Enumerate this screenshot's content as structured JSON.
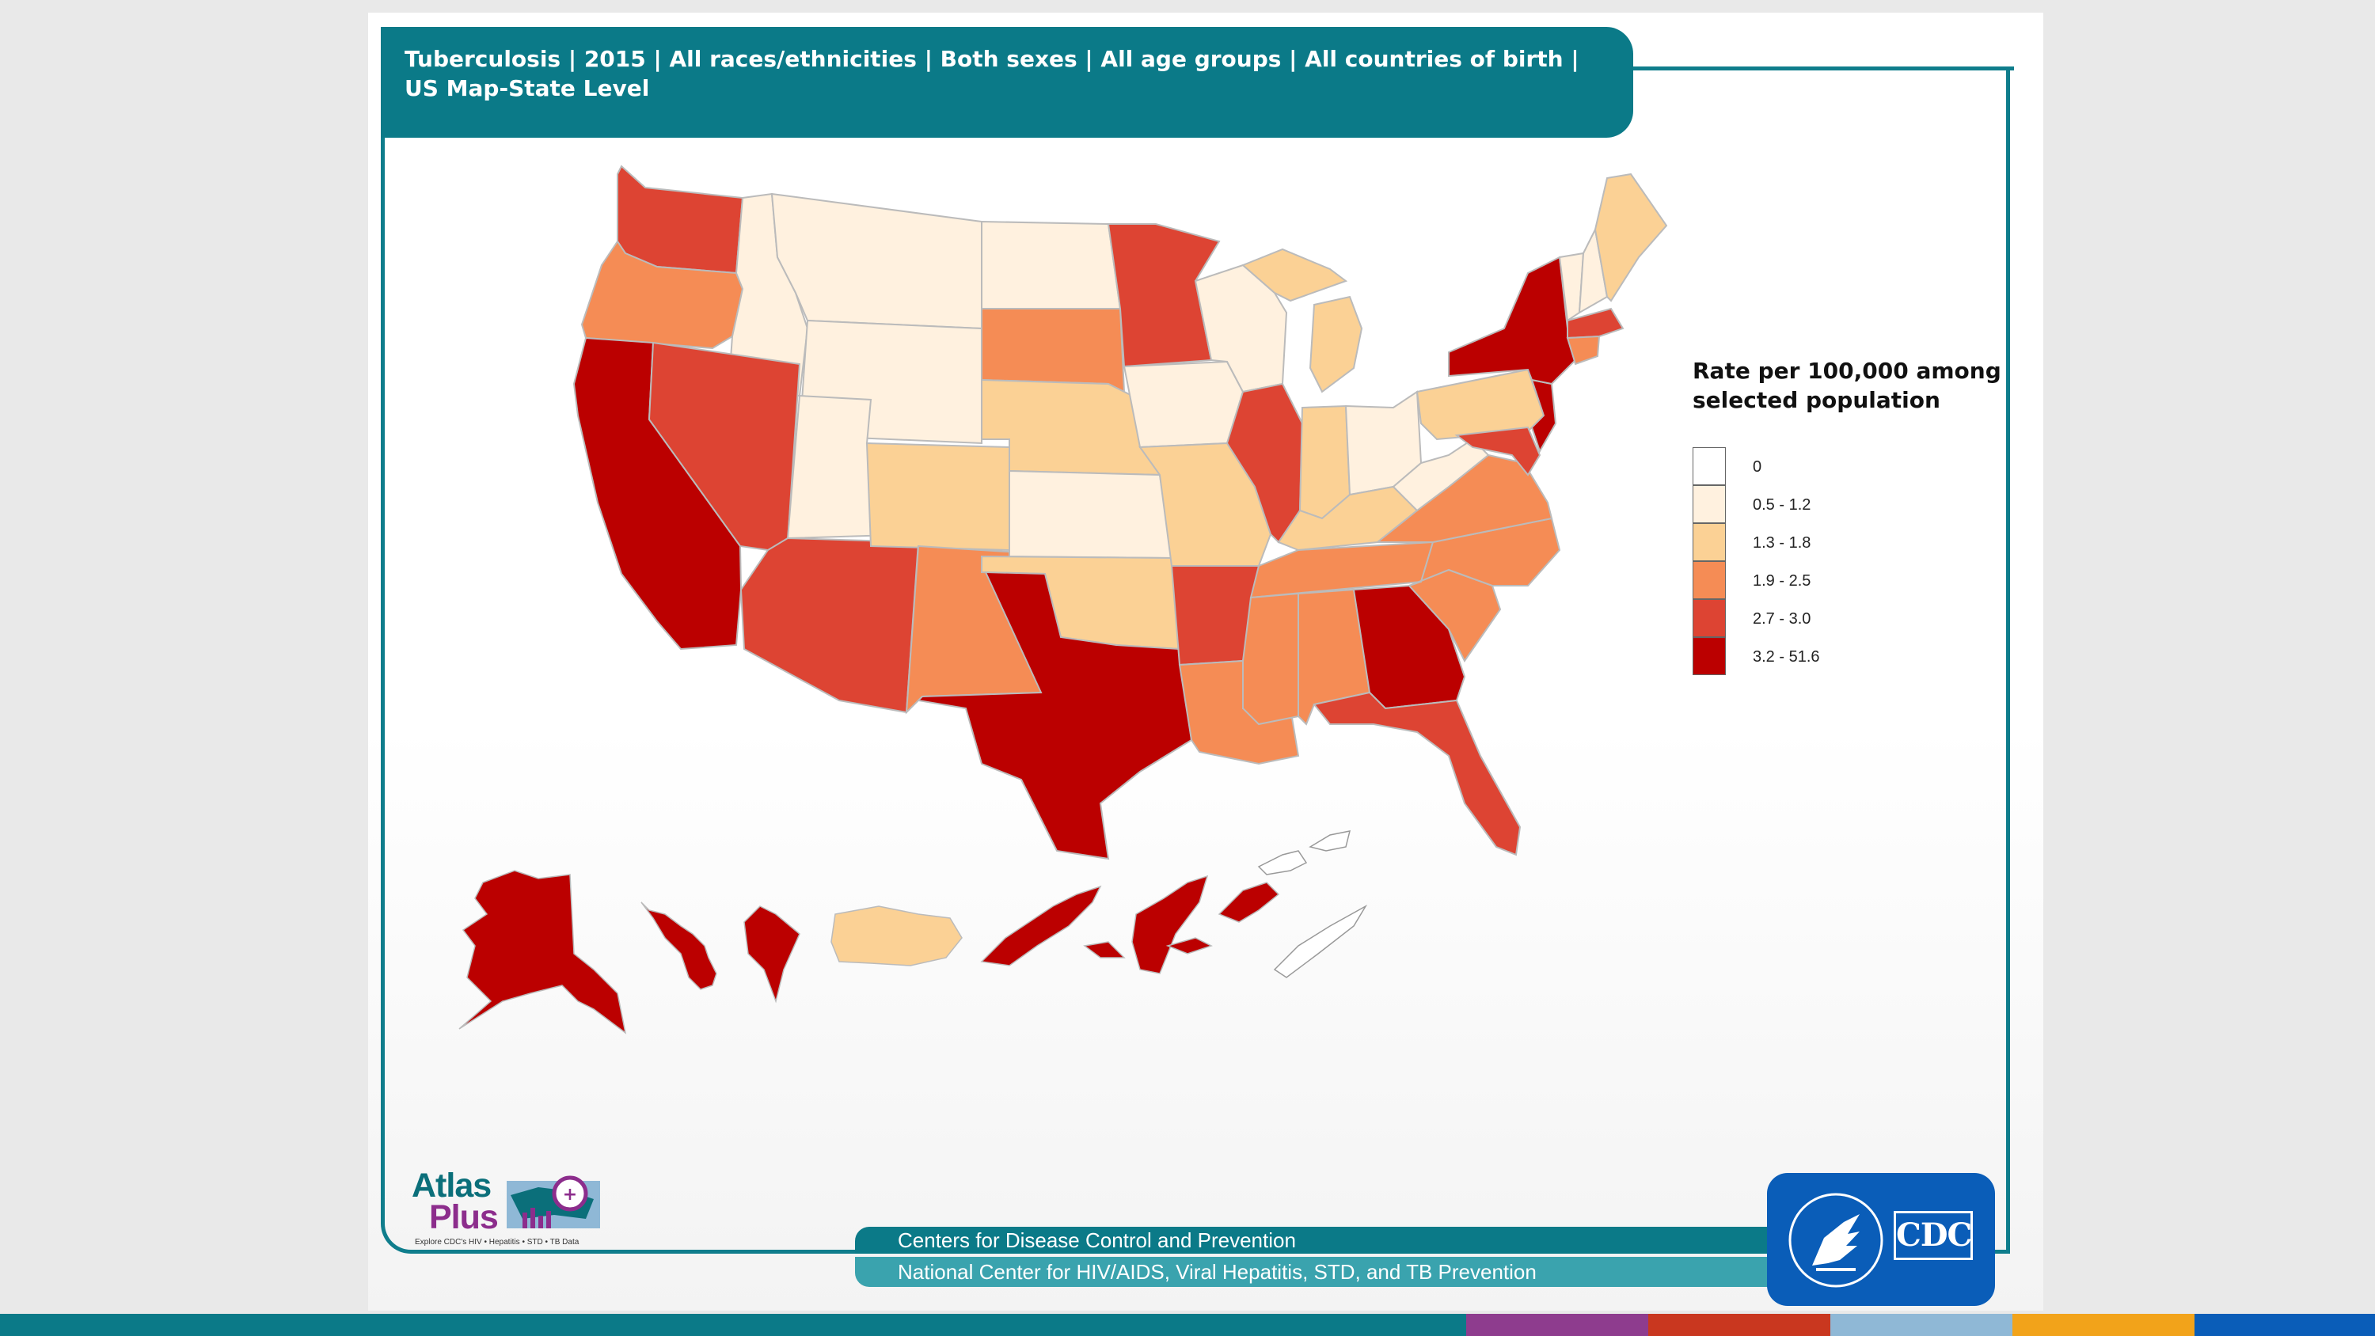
{
  "header": {
    "title": "Tuberculosis | 2015 | All races/ethnicities | Both sexes | All age groups | All countries of birth | US Map-State Level"
  },
  "legend": {
    "title": "Rate per 100,000 among selected population",
    "items": [
      {
        "label": "0",
        "color": "#ffffff"
      },
      {
        "label": "0.5 - 1.2",
        "color": "#fff1df"
      },
      {
        "label": "1.3 - 1.8",
        "color": "#fbd195"
      },
      {
        "label": "1.9 - 2.5",
        "color": "#f58c55"
      },
      {
        "label": "2.7 - 3.0",
        "color": "#dd4433"
      },
      {
        "label": "3.2 - 51.6",
        "color": "#bb0000"
      }
    ]
  },
  "map_data": {
    "class_colors": [
      "#ffffff",
      "#fff1df",
      "#fbd195",
      "#f58c55",
      "#dd4433",
      "#bb0000"
    ],
    "regions": [
      {
        "name": "Washington",
        "class": 4
      },
      {
        "name": "Oregon",
        "class": 3
      },
      {
        "name": "California",
        "class": 5
      },
      {
        "name": "Idaho",
        "class": 1
      },
      {
        "name": "Nevada",
        "class": 4
      },
      {
        "name": "Montana",
        "class": 1
      },
      {
        "name": "Wyoming",
        "class": 1
      },
      {
        "name": "Utah",
        "class": 1
      },
      {
        "name": "Arizona",
        "class": 4
      },
      {
        "name": "Colorado",
        "class": 2
      },
      {
        "name": "New Mexico",
        "class": 3
      },
      {
        "name": "North Dakota",
        "class": 1
      },
      {
        "name": "South Dakota",
        "class": 3
      },
      {
        "name": "Nebraska",
        "class": 2
      },
      {
        "name": "Kansas",
        "class": 1
      },
      {
        "name": "Oklahoma",
        "class": 2
      },
      {
        "name": "Texas",
        "class": 5
      },
      {
        "name": "Minnesota",
        "class": 4
      },
      {
        "name": "Iowa",
        "class": 1
      },
      {
        "name": "Missouri",
        "class": 2
      },
      {
        "name": "Arkansas",
        "class": 4
      },
      {
        "name": "Louisiana",
        "class": 3
      },
      {
        "name": "Wisconsin",
        "class": 1
      },
      {
        "name": "Illinois",
        "class": 4
      },
      {
        "name": "Michigan",
        "class": 2
      },
      {
        "name": "Indiana",
        "class": 2
      },
      {
        "name": "Ohio",
        "class": 1
      },
      {
        "name": "Kentucky",
        "class": 2
      },
      {
        "name": "Tennessee",
        "class": 3
      },
      {
        "name": "Mississippi",
        "class": 3
      },
      {
        "name": "Alabama",
        "class": 3
      },
      {
        "name": "Georgia",
        "class": 5
      },
      {
        "name": "Florida",
        "class": 4
      },
      {
        "name": "South Carolina",
        "class": 3
      },
      {
        "name": "North Carolina",
        "class": 3
      },
      {
        "name": "Virginia",
        "class": 3
      },
      {
        "name": "West Virginia",
        "class": 1
      },
      {
        "name": "Pennsylvania",
        "class": 2
      },
      {
        "name": "New York",
        "class": 5
      },
      {
        "name": "Maine",
        "class": 2
      },
      {
        "name": "Vermont",
        "class": 1
      },
      {
        "name": "New Hampshire",
        "class": 1
      },
      {
        "name": "Massachusetts",
        "class": 4
      },
      {
        "name": "Connecticut",
        "class": 3
      },
      {
        "name": "New Jersey",
        "class": 5
      },
      {
        "name": "Maryland",
        "class": 4
      },
      {
        "name": "Alaska",
        "class": 5
      },
      {
        "name": "Hawaii",
        "class": 5
      },
      {
        "name": "Guam",
        "class": 5
      },
      {
        "name": "Puerto Rico",
        "class": 2
      },
      {
        "name": "Federated States of Micronesia",
        "class": 5
      },
      {
        "name": "Marshall Islands",
        "class": 5
      },
      {
        "name": "Northern Mariana Islands",
        "class": 5
      },
      {
        "name": "US Virgin Islands",
        "class": 0
      },
      {
        "name": "Palau",
        "class": 0
      }
    ]
  },
  "footer": {
    "line1": "Centers for Disease Control and Prevention",
    "line2": "National Center for HIV/AIDS, Viral Hepatitis, STD, and TB Prevention"
  },
  "logos": {
    "atlas_line1": "Atlas",
    "atlas_line2": "Plus",
    "atlas_tagline": "Explore CDC's HIV • Hepatitis • STD • TB Data",
    "cdc_text": "CDC"
  },
  "colors": {
    "teal": "#0b7a88",
    "teal_light": "#3aa3ae",
    "cdc_blue": "#0a5db8",
    "strip": [
      "#0b7a88",
      "#0b7a88",
      "#8e3c8e",
      "#c9371f",
      "#8fb8d6",
      "#f2a31a",
      "#0a5db8"
    ]
  }
}
